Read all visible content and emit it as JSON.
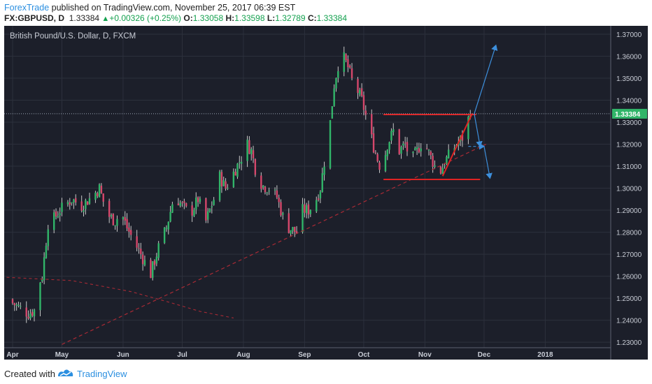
{
  "header": {
    "author": "ForexTrade",
    "published_text": " published on TradingView.com, November 25, 2017 06:39 EST",
    "symbol": "FX:GBPUSD, D",
    "last": "1.33384",
    "change": "+0.00326 (+0.25%)",
    "open_label": "O:",
    "open": "1.33058",
    "high_label": "H:",
    "high": "1.33598",
    "low_label": "L:",
    "low": "1.32789",
    "close_label": "C:",
    "close": "1.33384"
  },
  "footer": {
    "created_with": "Created with",
    "brand": "TradingView"
  },
  "colors": {
    "background": "#1c1f2a",
    "grid": "#2c303c",
    "bull": "#31b569",
    "bear": "#d5476b",
    "wick": "#c8c8c8",
    "red_line": "#e02323",
    "dashed_red": "#a82a35",
    "arrow_blue": "#3d8fdc",
    "price_tag": "#31b569",
    "axis_text": "#c9cdd6"
  },
  "chart_data": {
    "type": "candlestick",
    "title": "British Pound/U.S. Dollar, D, FXCM",
    "x_tick_labels": [
      "Apr",
      "May",
      "Jun",
      "Jul",
      "Aug",
      "Sep",
      "Oct",
      "Nov",
      "Dec",
      "2018"
    ],
    "x_tick_days": [
      0,
      25,
      56,
      86,
      117,
      148,
      178,
      209,
      239,
      270
    ],
    "y_tick_labels": [
      "1.23000",
      "1.24000",
      "1.25000",
      "1.26000",
      "1.27000",
      "1.28000",
      "1.29000",
      "1.30000",
      "1.31000",
      "1.32000",
      "1.33000",
      "1.34000",
      "1.35000",
      "1.36000",
      "1.37000"
    ],
    "ylim": [
      1.2275,
      1.3738
    ],
    "current_price_label": "1.33384",
    "current_price": 1.33384,
    "close_anchors": [
      [
        -3,
        1.2495
      ],
      [
        3,
        1.246
      ],
      [
        8,
        1.243
      ],
      [
        11,
        1.2445
      ],
      [
        13,
        1.256
      ],
      [
        15,
        1.26
      ],
      [
        18,
        1.284
      ],
      [
        20,
        1.285
      ],
      [
        24,
        1.29
      ],
      [
        30,
        1.295
      ],
      [
        35,
        1.292
      ],
      [
        40,
        1.296
      ],
      [
        44,
        1.3
      ],
      [
        48,
        1.288
      ],
      [
        52,
        1.285
      ],
      [
        55,
        1.289
      ],
      [
        58,
        1.282
      ],
      [
        62,
        1.275
      ],
      [
        65,
        1.27
      ],
      [
        70,
        1.261
      ],
      [
        74,
        1.273
      ],
      [
        78,
        1.282
      ],
      [
        82,
        1.297
      ],
      [
        86,
        1.292
      ],
      [
        90,
        1.288
      ],
      [
        94,
        1.295
      ],
      [
        98,
        1.285
      ],
      [
        102,
        1.295
      ],
      [
        104,
        1.307
      ],
      [
        108,
        1.3
      ],
      [
        112,
        1.307
      ],
      [
        116,
        1.314
      ],
      [
        119,
        1.32
      ],
      [
        121,
        1.317
      ],
      [
        124,
        1.305
      ],
      [
        127,
        1.301
      ],
      [
        130,
        1.3
      ],
      [
        134,
        1.296
      ],
      [
        137,
        1.287
      ],
      [
        140,
        1.282
      ],
      [
        144,
        1.28
      ],
      [
        147,
        1.29
      ],
      [
        150,
        1.29
      ],
      [
        153,
        1.293
      ],
      [
        156,
        1.3
      ],
      [
        158,
        1.312
      ],
      [
        161,
        1.33
      ],
      [
        163,
        1.347
      ],
      [
        165,
        1.356
      ],
      [
        168,
        1.359
      ],
      [
        170,
        1.355
      ],
      [
        172,
        1.349
      ],
      [
        175,
        1.344
      ],
      [
        177,
        1.34
      ],
      [
        179,
        1.333
      ],
      [
        181,
        1.326
      ],
      [
        183,
        1.319
      ],
      [
        185,
        1.313
      ],
      [
        187,
        1.308
      ],
      [
        190,
        1.32
      ],
      [
        193,
        1.326
      ],
      [
        196,
        1.317
      ],
      [
        199,
        1.32
      ],
      [
        202,
        1.312
      ],
      [
        205,
        1.317
      ],
      [
        208,
        1.322
      ],
      [
        210,
        1.318
      ],
      [
        213,
        1.312
      ],
      [
        216,
        1.306
      ],
      [
        219,
        1.312
      ],
      [
        222,
        1.316
      ],
      [
        225,
        1.32
      ],
      [
        228,
        1.323
      ],
      [
        230,
        1.329
      ],
      [
        232,
        1.3338
      ]
    ],
    "resistance_line": {
      "price": 1.3335,
      "from_day": 188,
      "to_day": 235
    },
    "support_line": {
      "price": 1.304,
      "from_day": 188,
      "to_day": 237
    },
    "trendline_to_apex": {
      "from": [
        218,
        1.3055
      ],
      "to": [
        233,
        1.334
      ]
    },
    "long_dashed_trend": {
      "from": [
        25,
        1.229
      ],
      "to": [
        240,
        1.32
      ]
    },
    "curve_dashed": [
      [
        -3,
        1.2595
      ],
      [
        30,
        1.258
      ],
      [
        60,
        1.253
      ],
      [
        80,
        1.248
      ],
      [
        95,
        1.244
      ],
      [
        112,
        1.241
      ]
    ],
    "projections": [
      {
        "from": [
          234,
          1.3338
        ],
        "to": [
          245,
          1.365
        ],
        "style": "solid"
      },
      {
        "from": [
          234,
          1.3338
        ],
        "to": [
          237,
          1.319
        ],
        "style": "solid"
      },
      {
        "from": [
          231,
          1.319
        ],
        "to": [
          239,
          1.319
        ],
        "style": "dashed"
      },
      {
        "from": [
          239,
          1.319
        ],
        "to": [
          242,
          1.3045
        ],
        "style": "solid"
      }
    ]
  }
}
